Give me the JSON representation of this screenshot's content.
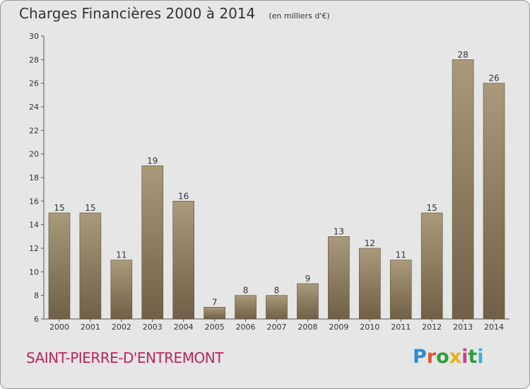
{
  "header": {
    "title": "Charges Financières 2000 à 2014",
    "subtitle": "(en milliers d'€)"
  },
  "footer": {
    "location": "SAINT-PIERRE-D'ENTREMONT",
    "logo_text": "Proxiti"
  },
  "colors": {
    "background": "#e6e6e6",
    "bar_light": "#a99a7b",
    "bar_dark": "#6f6047",
    "location_text": "#c0245f"
  },
  "chart_data": {
    "type": "bar",
    "title": "Charges Financières 2000 à 2014",
    "subtitle": "(en milliers d'€)",
    "xlabel": "",
    "ylabel": "",
    "categories": [
      "2000",
      "2001",
      "2002",
      "2003",
      "2004",
      "2005",
      "2006",
      "2007",
      "2008",
      "2009",
      "2010",
      "2011",
      "2012",
      "2013",
      "2014"
    ],
    "values": [
      15,
      15,
      11,
      19,
      16,
      7,
      8,
      8,
      9,
      13,
      12,
      11,
      15,
      28,
      26
    ],
    "data_labels": [
      "15",
      "15",
      "11",
      "19",
      "16",
      "7",
      "8",
      "8",
      "9",
      "13",
      "12",
      "11",
      "15",
      "28",
      "26"
    ],
    "ylim": [
      6,
      30
    ],
    "yticks": [
      6,
      8,
      10,
      12,
      14,
      16,
      18,
      20,
      22,
      24,
      26,
      28,
      30
    ],
    "grid": false,
    "legend": "none"
  }
}
